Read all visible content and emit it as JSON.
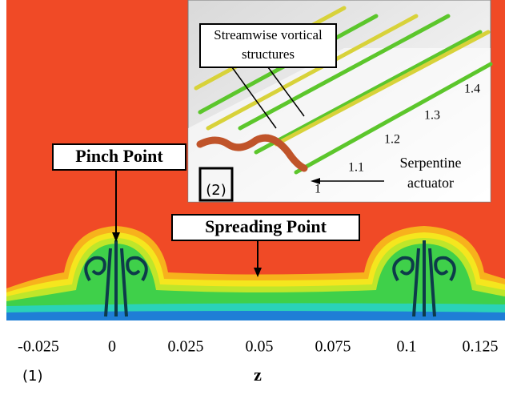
{
  "figure": {
    "panel_label": "(1)",
    "axis": {
      "label": "z",
      "ticks": [
        -0.025,
        0,
        0.025,
        0.05,
        0.075,
        0.1,
        0.125
      ]
    },
    "annotations": {
      "pinch": "Pinch Point",
      "spreading": "Spreading Point"
    },
    "inset": {
      "panel_label": "(2)",
      "callout": [
        "Streamwise vortical",
        "structures"
      ],
      "actuator": [
        "Serpentine",
        "actuator"
      ],
      "stations": [
        "1.4",
        "1.3",
        "1.2",
        "1.1",
        "1"
      ]
    }
  }
}
